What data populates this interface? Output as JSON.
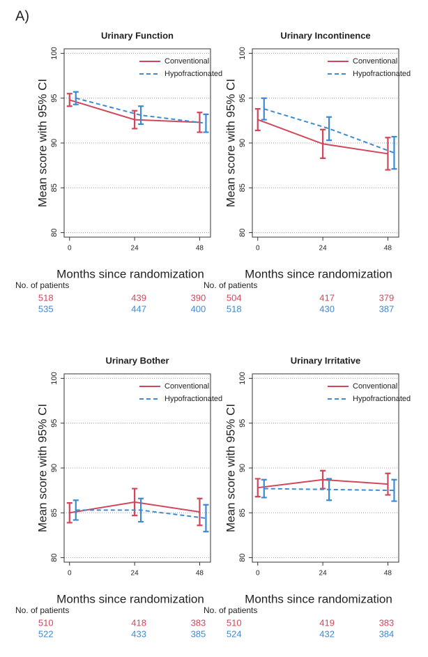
{
  "panel_label": "A)",
  "chart_data": [
    {
      "type": "line",
      "title": "Urinary Function",
      "ylabel": "Mean score with 95% CI",
      "xlabel": "Months since randomization",
      "x": [
        0,
        24,
        48
      ],
      "xlim": [
        -2,
        52
      ],
      "xticks": [
        0,
        24,
        48
      ],
      "ylim": [
        79.5,
        100.5
      ],
      "yticks": [
        80,
        85,
        90,
        95,
        100
      ],
      "grid": true,
      "patients_label": "No. of patients",
      "series": [
        {
          "name": "Conventional",
          "color": "#d0475c",
          "linestyle": "solid",
          "values": [
            94.8,
            92.6,
            92.3
          ],
          "errors": [
            0.7,
            1.0,
            1.1
          ],
          "patients": [
            518,
            439,
            390
          ]
        },
        {
          "name": "Hypofractionated",
          "color": "#3d8ad3",
          "linestyle": "dashed",
          "values": [
            95.0,
            93.1,
            92.2
          ],
          "errors": [
            0.7,
            1.0,
            1.0
          ],
          "patients": [
            535,
            447,
            400
          ]
        }
      ]
    },
    {
      "type": "line",
      "title": "Urinary Incontinence",
      "ylabel": "Mean score with 95% CI",
      "xlabel": "Months since randomization",
      "x": [
        0,
        24,
        48
      ],
      "xlim": [
        -2,
        52
      ],
      "xticks": [
        0,
        24,
        48
      ],
      "ylim": [
        79.5,
        100.5
      ],
      "yticks": [
        80,
        85,
        90,
        95,
        100
      ],
      "grid": true,
      "patients_label": "No. of patients",
      "series": [
        {
          "name": "Conventional",
          "color": "#d0475c",
          "linestyle": "solid",
          "values": [
            92.6,
            89.9,
            88.8
          ],
          "errors": [
            1.2,
            1.6,
            1.8
          ],
          "patients": [
            504,
            417,
            379
          ]
        },
        {
          "name": "Hypofractionated",
          "color": "#3d8ad3",
          "linestyle": "dashed",
          "values": [
            93.8,
            91.6,
            88.9
          ],
          "errors": [
            1.2,
            1.3,
            1.8
          ],
          "patients": [
            518,
            430,
            387
          ]
        }
      ]
    },
    {
      "type": "line",
      "title": "Urinary Bother",
      "ylabel": "Mean score with 95% CI",
      "xlabel": "Months since randomization",
      "x": [
        0,
        24,
        48
      ],
      "xlim": [
        -2,
        52
      ],
      "xticks": [
        0,
        24,
        48
      ],
      "ylim": [
        79.5,
        100.5
      ],
      "yticks": [
        80,
        85,
        90,
        95,
        100
      ],
      "grid": true,
      "patients_label": "No. of patients",
      "series": [
        {
          "name": "Conventional",
          "color": "#d0475c",
          "linestyle": "solid",
          "values": [
            85.0,
            86.2,
            85.1
          ],
          "errors": [
            1.1,
            1.5,
            1.5
          ],
          "patients": [
            510,
            418,
            383
          ]
        },
        {
          "name": "Hypofractionated",
          "color": "#3d8ad3",
          "linestyle": "dashed",
          "values": [
            85.3,
            85.3,
            84.4
          ],
          "errors": [
            1.1,
            1.3,
            1.5
          ],
          "patients": [
            522,
            433,
            385
          ]
        }
      ]
    },
    {
      "type": "line",
      "title": "Urinary Irritative",
      "ylabel": "Mean score with 95% CI",
      "xlabel": "Months since randomization",
      "x": [
        0,
        24,
        48
      ],
      "xlim": [
        -2,
        52
      ],
      "xticks": [
        0,
        24,
        48
      ],
      "ylim": [
        79.5,
        100.5
      ],
      "yticks": [
        80,
        85,
        90,
        95,
        100
      ],
      "grid": true,
      "patients_label": "No. of patients",
      "series": [
        {
          "name": "Conventional",
          "color": "#d0475c",
          "linestyle": "solid",
          "values": [
            87.8,
            88.7,
            88.2
          ],
          "errors": [
            1.0,
            1.0,
            1.2
          ],
          "patients": [
            510,
            419,
            383
          ]
        },
        {
          "name": "Hypofractionated",
          "color": "#3d8ad3",
          "linestyle": "dashed",
          "values": [
            87.7,
            87.6,
            87.5
          ],
          "errors": [
            1.0,
            1.2,
            1.2
          ],
          "patients": [
            524,
            432,
            384
          ]
        }
      ]
    }
  ]
}
